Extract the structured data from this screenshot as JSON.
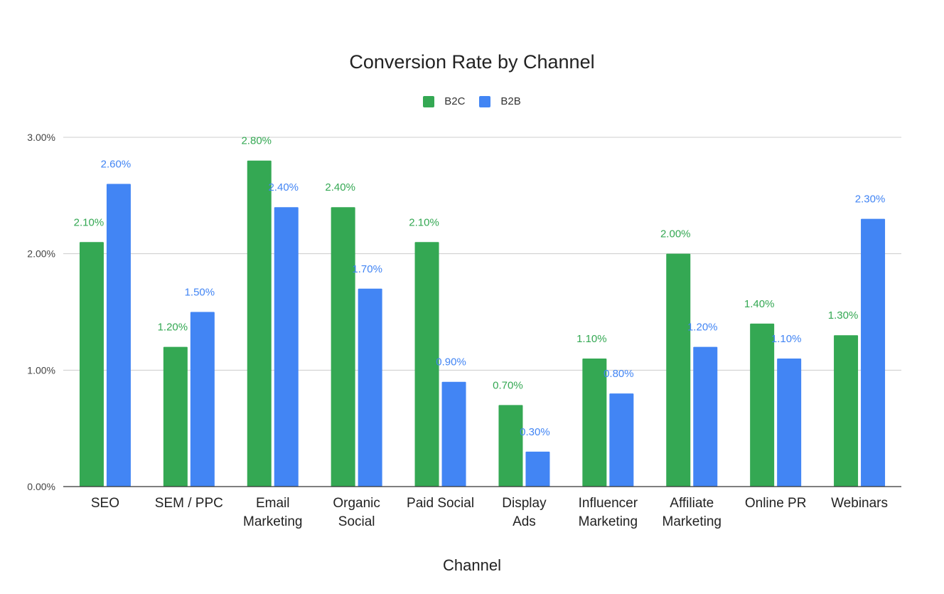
{
  "chart_data": {
    "type": "bar",
    "title": "Conversion Rate by Channel",
    "xlabel": "Channel",
    "ylabel": "",
    "ylim": [
      0,
      3
    ],
    "y_ticks": [
      "0.00%",
      "1.00%",
      "2.00%",
      "3.00%"
    ],
    "grid": true,
    "legend_position": "top-center",
    "categories": [
      [
        "SEO"
      ],
      [
        "SEM / PPC"
      ],
      [
        "Email",
        "Marketing"
      ],
      [
        "Organic",
        "Social"
      ],
      [
        "Paid Social"
      ],
      [
        "Display",
        "Ads"
      ],
      [
        "Influencer",
        "Marketing"
      ],
      [
        "Affiliate",
        "Marketing"
      ],
      [
        "Online PR"
      ],
      [
        "Webinars"
      ]
    ],
    "series": [
      {
        "name": "B2C",
        "color": "#34a853",
        "values": [
          2.1,
          1.2,
          2.8,
          2.4,
          2.1,
          0.7,
          1.1,
          2.0,
          1.4,
          1.3
        ],
        "labels": [
          "2.10%",
          "1.20%",
          "2.80%",
          "2.40%",
          "2.10%",
          "0.70%",
          "1.10%",
          "2.00%",
          "1.40%",
          "1.30%"
        ]
      },
      {
        "name": "B2B",
        "color": "#4285f4",
        "values": [
          2.6,
          1.5,
          2.4,
          1.7,
          0.9,
          0.3,
          0.8,
          1.2,
          1.1,
          2.3
        ],
        "labels": [
          "2.60%",
          "1.50%",
          "2.40%",
          "1.70%",
          "0.90%",
          "0.30%",
          "0.80%",
          "1.20%",
          "1.10%",
          "2.30%"
        ]
      }
    ]
  }
}
